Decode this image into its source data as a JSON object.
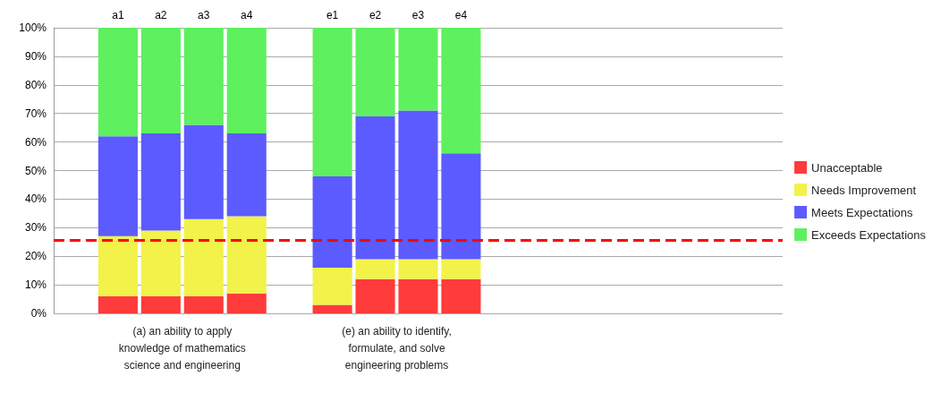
{
  "chart_data": {
    "type": "bar",
    "stacked": true,
    "categories": [
      null,
      "a1",
      "a2",
      "a3",
      "a4",
      null,
      "e1",
      "e2",
      "e3",
      "e4",
      null,
      null,
      null,
      null,
      null,
      null,
      null
    ],
    "series": [
      {
        "name": "Unacceptable",
        "color": "#ff3b3b",
        "values": [
          null,
          6,
          6,
          6,
          7,
          null,
          3,
          12,
          12,
          12,
          null,
          null,
          null,
          null,
          null,
          null,
          null
        ]
      },
      {
        "name": "Needs Improvement",
        "color": "#f2f24a",
        "values": [
          null,
          21,
          23,
          27,
          27,
          null,
          13,
          7,
          7,
          7,
          null,
          null,
          null,
          null,
          null,
          null,
          null
        ]
      },
      {
        "name": "Meets Expectations",
        "color": "#5b5bff",
        "values": [
          null,
          35,
          34,
          33,
          29,
          null,
          32,
          50,
          52,
          37,
          null,
          null,
          null,
          null,
          null,
          null,
          null
        ]
      },
      {
        "name": "Exceeds Expectations",
        "color": "#5ef05e",
        "values": [
          null,
          38,
          37,
          34,
          37,
          null,
          52,
          31,
          29,
          44,
          null,
          null,
          null,
          null,
          null,
          null,
          null
        ]
      }
    ],
    "ylim": [
      0,
      100
    ],
    "yticks": [
      {
        "value": 0,
        "label": "0%"
      },
      {
        "value": 10,
        "label": "10%"
      },
      {
        "value": 20,
        "label": "20%"
      },
      {
        "value": 30,
        "label": "30%"
      },
      {
        "value": 40,
        "label": "40%"
      },
      {
        "value": 50,
        "label": "50%"
      },
      {
        "value": 60,
        "label": "60%"
      },
      {
        "value": 70,
        "label": "70%"
      },
      {
        "value": 80,
        "label": "80%"
      },
      {
        "value": 90,
        "label": "90%"
      },
      {
        "value": 100,
        "label": "100%"
      }
    ],
    "grid": "y",
    "legend": "right",
    "ref_lines": [
      {
        "axis": "y",
        "value": 25.5,
        "color": "#ff0000",
        "line_style": "dashed"
      }
    ],
    "annotations": [
      "(a) an ability to apply\nknowledge of mathematics\nscience and engineering",
      "(e) an ability to identify,\nformulate, and solve\nengineering problems"
    ]
  }
}
